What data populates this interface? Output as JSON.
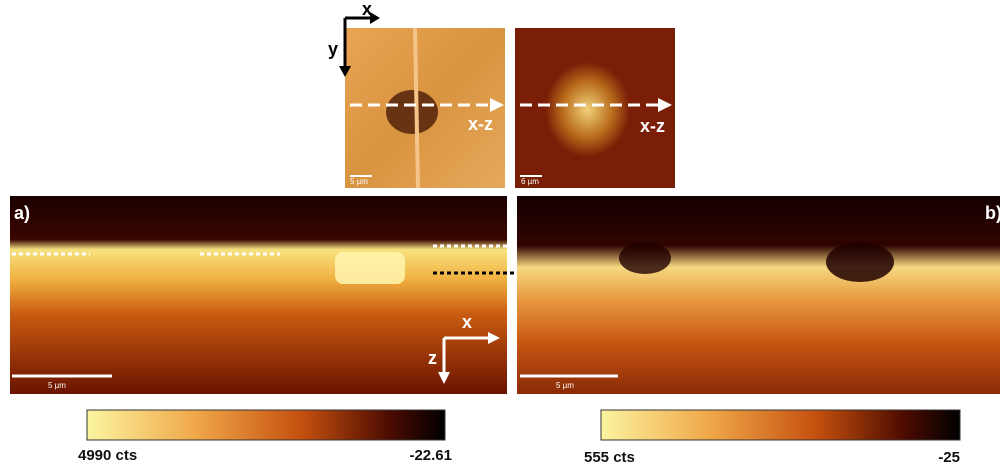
{
  "top_images": {
    "axis_x": "x",
    "axis_y": "y",
    "left": {
      "arrow_label": "x-z",
      "scale_bar": "5 µm"
    },
    "right": {
      "arrow_label": "x-z",
      "scale_bar": "6 µm"
    }
  },
  "panels": [
    {
      "label": "a)",
      "scale_bar": "5 µm",
      "axis_x": "x",
      "axis_z": "z"
    },
    {
      "label": "b)",
      "scale_bar": "5 µm"
    }
  ],
  "colorbars": [
    {
      "min_label": "4990 cts",
      "max_label": "-22.61"
    },
    {
      "min_label": "555 cts",
      "max_label": "-25"
    }
  ]
}
